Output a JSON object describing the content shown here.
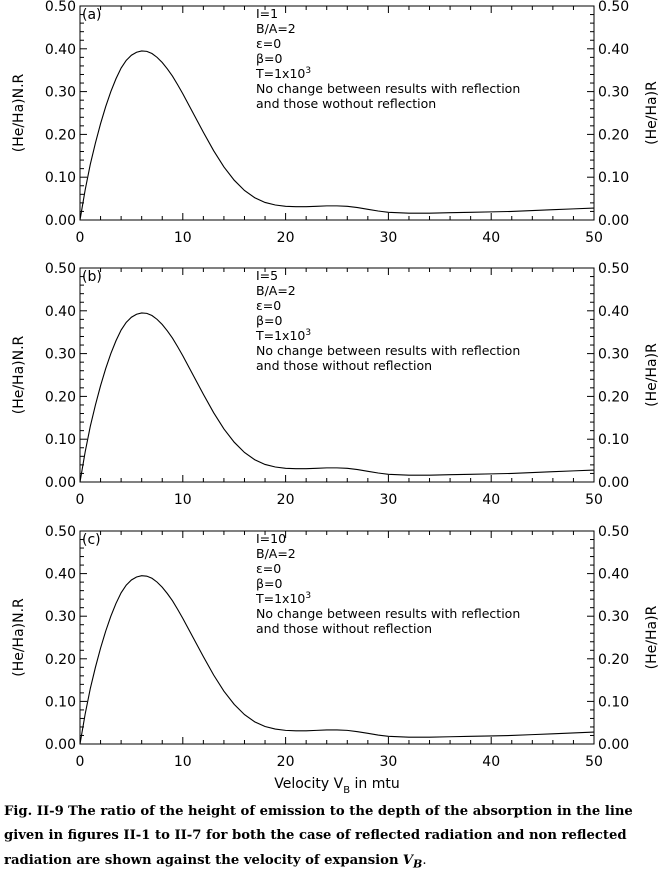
{
  "chart_data": [
    {
      "type": "line",
      "panel_tag": "(a)",
      "ylabel_left": "(He/Ha)N.R",
      "ylabel_right": "(He/Ha)R",
      "xlabel": "",
      "xlim": [
        0,
        50
      ],
      "ylim": [
        0,
        0.5
      ],
      "x_ticks": [
        "0",
        "10",
        "20",
        "30",
        "40",
        "50"
      ],
      "y_ticks": [
        "0.00",
        "0.10",
        "0.20",
        "0.30",
        "0.40",
        "0.50"
      ],
      "annotations": [
        "I=1",
        "B/A=2",
        "ε=0",
        "β=0",
        "T=1x10³",
        "No change between results with reflection",
        "and those wothout reflection"
      ],
      "series": [
        {
          "x": [
            0,
            0.5,
            1,
            1.5,
            2,
            2.5,
            3,
            3.5,
            4,
            4.5,
            5,
            5.5,
            6,
            6.5,
            7,
            7.5,
            8,
            8.5,
            9,
            9.5,
            10,
            11,
            12,
            13,
            14,
            15,
            16,
            17,
            18,
            19,
            20,
            21,
            22,
            23,
            24,
            25,
            26,
            27,
            28,
            29,
            30,
            32,
            34,
            36,
            38,
            40,
            42,
            44,
            46,
            48,
            50
          ],
          "y": [
            0.0,
            0.07,
            0.13,
            0.18,
            0.225,
            0.265,
            0.3,
            0.33,
            0.355,
            0.373,
            0.385,
            0.392,
            0.395,
            0.394,
            0.389,
            0.38,
            0.368,
            0.353,
            0.336,
            0.316,
            0.295,
            0.25,
            0.205,
            0.162,
            0.124,
            0.093,
            0.069,
            0.052,
            0.041,
            0.035,
            0.032,
            0.031,
            0.031,
            0.032,
            0.033,
            0.033,
            0.032,
            0.029,
            0.025,
            0.021,
            0.018,
            0.016,
            0.016,
            0.017,
            0.018,
            0.019,
            0.02,
            0.022,
            0.024,
            0.026,
            0.028
          ]
        }
      ]
    },
    {
      "type": "line",
      "panel_tag": "(b)",
      "ylabel_left": "(He/Ha)N.R",
      "ylabel_right": "(He/Ha)R",
      "xlabel": "",
      "xlim": [
        0,
        50
      ],
      "ylim": [
        0,
        0.5
      ],
      "x_ticks": [
        "0",
        "10",
        "20",
        "30",
        "40",
        "50"
      ],
      "y_ticks": [
        "0.00",
        "0.10",
        "0.20",
        "0.30",
        "0.40",
        "0.50"
      ],
      "annotations": [
        "I=5",
        "B/A=2",
        "ε=0",
        "β=0",
        "T=1x10³",
        "No change between results with reflection",
        "and those without reflection"
      ],
      "series": [
        {
          "x": [
            0,
            0.5,
            1,
            1.5,
            2,
            2.5,
            3,
            3.5,
            4,
            4.5,
            5,
            5.5,
            6,
            6.5,
            7,
            7.5,
            8,
            8.5,
            9,
            9.5,
            10,
            11,
            12,
            13,
            14,
            15,
            16,
            17,
            18,
            19,
            20,
            21,
            22,
            23,
            24,
            25,
            26,
            27,
            28,
            29,
            30,
            32,
            34,
            36,
            38,
            40,
            42,
            44,
            46,
            48,
            50
          ],
          "y": [
            0.0,
            0.07,
            0.13,
            0.18,
            0.225,
            0.265,
            0.3,
            0.33,
            0.355,
            0.373,
            0.385,
            0.392,
            0.395,
            0.394,
            0.389,
            0.38,
            0.368,
            0.353,
            0.336,
            0.316,
            0.295,
            0.25,
            0.205,
            0.162,
            0.124,
            0.093,
            0.069,
            0.052,
            0.041,
            0.035,
            0.032,
            0.031,
            0.031,
            0.032,
            0.033,
            0.033,
            0.032,
            0.029,
            0.025,
            0.021,
            0.018,
            0.016,
            0.016,
            0.017,
            0.018,
            0.019,
            0.02,
            0.022,
            0.024,
            0.026,
            0.028
          ]
        }
      ]
    },
    {
      "type": "line",
      "panel_tag": "(c)",
      "ylabel_left": "(He/Ha)N.R",
      "ylabel_right": "(He/Ha)R",
      "xlabel": "Velocity V",
      "xlabel_sub": "B",
      "xlabel_tail": " in mtu",
      "xlim": [
        0,
        50
      ],
      "ylim": [
        0,
        0.5
      ],
      "x_ticks": [
        "0",
        "10",
        "20",
        "30",
        "40",
        "50"
      ],
      "y_ticks": [
        "0.00",
        "0.10",
        "0.20",
        "0.30",
        "0.40",
        "0.50"
      ],
      "annotations": [
        "I=10",
        "B/A=2",
        "ε=0",
        "β=0",
        "T=1x10³",
        "No change between results with reflection",
        "and those without reflection"
      ],
      "series": [
        {
          "x": [
            0,
            0.5,
            1,
            1.5,
            2,
            2.5,
            3,
            3.5,
            4,
            4.5,
            5,
            5.5,
            6,
            6.5,
            7,
            7.5,
            8,
            8.5,
            9,
            9.5,
            10,
            11,
            12,
            13,
            14,
            15,
            16,
            17,
            18,
            19,
            20,
            21,
            22,
            23,
            24,
            25,
            26,
            27,
            28,
            29,
            30,
            32,
            34,
            36,
            38,
            40,
            42,
            44,
            46,
            48,
            50
          ],
          "y": [
            0.0,
            0.07,
            0.13,
            0.18,
            0.225,
            0.265,
            0.3,
            0.33,
            0.355,
            0.373,
            0.385,
            0.392,
            0.395,
            0.394,
            0.389,
            0.38,
            0.368,
            0.353,
            0.336,
            0.316,
            0.295,
            0.25,
            0.205,
            0.162,
            0.124,
            0.093,
            0.069,
            0.052,
            0.041,
            0.035,
            0.032,
            0.031,
            0.031,
            0.032,
            0.033,
            0.033,
            0.032,
            0.029,
            0.025,
            0.021,
            0.018,
            0.016,
            0.016,
            0.017,
            0.018,
            0.019,
            0.02,
            0.022,
            0.024,
            0.026,
            0.028
          ]
        }
      ]
    }
  ],
  "caption": {
    "label": "Fig. II-9",
    "text": "The ratio of the height of emission to the depth of the absorption in the line given in figures II-1 to II-7 for both the case of reflected radiation and non reflected radiation are shown against the velocity of expansion",
    "symbol": "V",
    "symbol_sub": "B",
    "end": "."
  }
}
